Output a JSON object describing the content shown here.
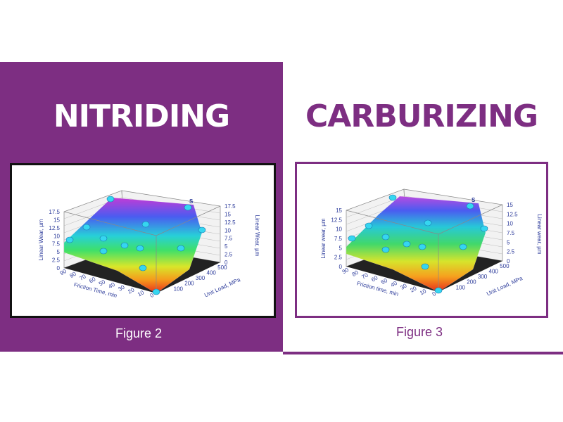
{
  "panels": [
    {
      "heading": "NITRIDING",
      "caption": "Figure 2",
      "figure": {
        "z_label": "Linear Wear, µm",
        "z_label_right": "Linear Wear, µm",
        "z_ticks": [
          "0",
          "2.5",
          "5",
          "7.5",
          "10",
          "12.5",
          "15",
          "17.5"
        ],
        "x_label": "Friction Time, min",
        "x_ticks": [
          "90",
          "80",
          "70",
          "60",
          "50",
          "40",
          "30",
          "20",
          "10",
          "0"
        ],
        "y_label": "Unit Load, MPa",
        "y_ticks": [
          "100",
          "200",
          "300",
          "400",
          "500"
        ],
        "marker": "S"
      }
    },
    {
      "heading": "CARBURIZING",
      "caption": "Figure 3",
      "figure": {
        "z_label": "Linear wear, µm",
        "z_label_right": "Linear wear, µm",
        "z_ticks": [
          "0",
          "2.5",
          "5",
          "7.5",
          "10",
          "12.5",
          "15"
        ],
        "x_label": "Friction time, min",
        "x_ticks": [
          "90",
          "80",
          "70",
          "60",
          "50",
          "40",
          "30",
          "20",
          "10",
          "0"
        ],
        "y_label": "Unit Load, MPa",
        "y_ticks": [
          "100",
          "200",
          "300",
          "400",
          "500"
        ],
        "marker": "S"
      }
    }
  ]
}
